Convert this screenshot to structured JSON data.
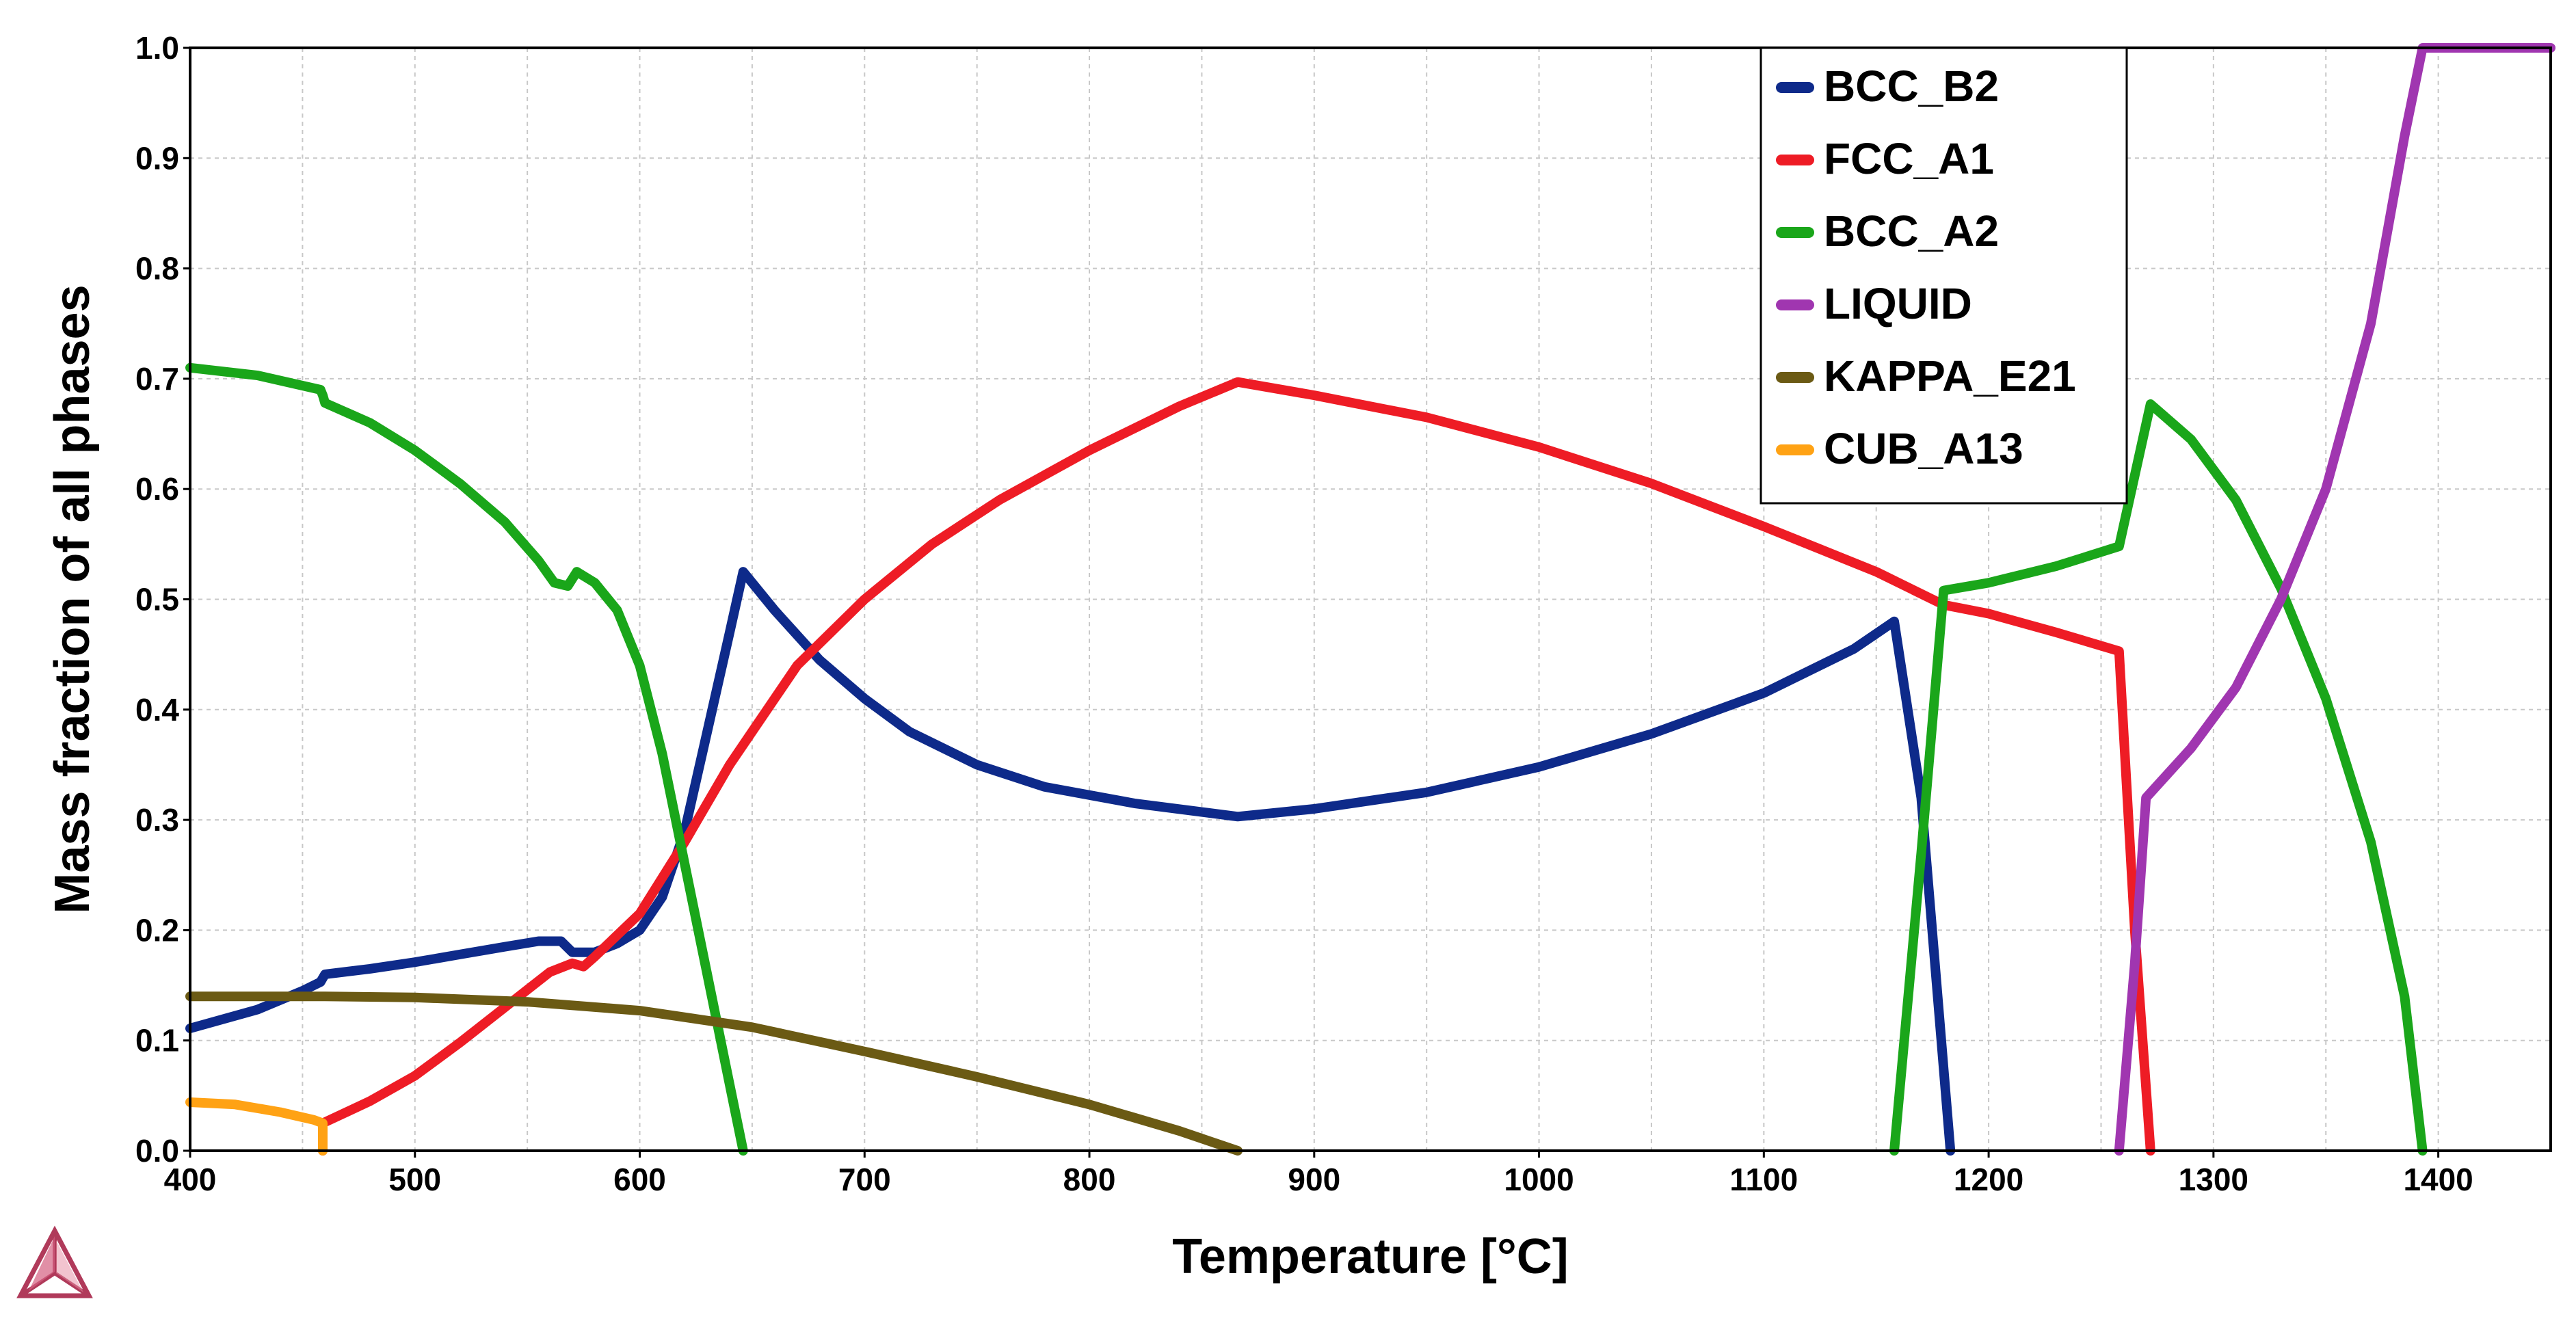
{
  "chart_data": {
    "type": "line",
    "title": "",
    "xlabel": "Temperature [°C]",
    "ylabel": "Mass fraction of all phases",
    "xlim": [
      400,
      1450
    ],
    "ylim": [
      0,
      1.0
    ],
    "grid": true,
    "legend_position": "top-right",
    "x_ticks": [
      400,
      500,
      600,
      700,
      800,
      900,
      1000,
      1100,
      1200,
      1300,
      1400
    ],
    "y_ticks": [
      0.0,
      0.1,
      0.2,
      0.3,
      0.4,
      0.5,
      0.6,
      0.7,
      0.8,
      0.9,
      1.0
    ],
    "x_tick_labels": [
      "400",
      "500",
      "600",
      "700",
      "800",
      "900",
      "1000",
      "1100",
      "1200",
      "1300",
      "1400"
    ],
    "y_tick_labels": [
      "0.0",
      "0.1",
      "0.2",
      "0.3",
      "0.4",
      "0.5",
      "0.6",
      "0.7",
      "0.8",
      "0.9",
      "1.0"
    ],
    "series": [
      {
        "name": "BCC_B2",
        "color": "#0e2a8a",
        "points": [
          [
            400,
            0.111
          ],
          [
            430,
            0.128
          ],
          [
            450,
            0.145
          ],
          [
            458,
            0.153
          ],
          [
            460,
            0.16
          ],
          [
            480,
            0.165
          ],
          [
            500,
            0.171
          ],
          [
            520,
            0.178
          ],
          [
            540,
            0.185
          ],
          [
            555,
            0.19
          ],
          [
            565,
            0.19
          ],
          [
            570,
            0.18
          ],
          [
            580,
            0.18
          ],
          [
            590,
            0.188
          ],
          [
            600,
            0.2
          ],
          [
            610,
            0.23
          ],
          [
            620,
            0.29
          ],
          [
            630,
            0.38
          ],
          [
            640,
            0.47
          ],
          [
            646,
            0.525
          ],
          [
            660,
            0.49
          ],
          [
            680,
            0.445
          ],
          [
            700,
            0.41
          ],
          [
            720,
            0.38
          ],
          [
            750,
            0.35
          ],
          [
            780,
            0.33
          ],
          [
            820,
            0.315
          ],
          [
            866,
            0.303
          ],
          [
            900,
            0.31
          ],
          [
            950,
            0.325
          ],
          [
            1000,
            0.348
          ],
          [
            1050,
            0.378
          ],
          [
            1100,
            0.415
          ],
          [
            1140,
            0.455
          ],
          [
            1158,
            0.48
          ],
          [
            1170,
            0.32
          ],
          [
            1183,
            0.0
          ]
        ]
      },
      {
        "name": "FCC_A1",
        "color": "#ee1c25",
        "points": [
          [
            459,
            0.0
          ],
          [
            459,
            0.025
          ],
          [
            480,
            0.045
          ],
          [
            500,
            0.068
          ],
          [
            520,
            0.098
          ],
          [
            540,
            0.13
          ],
          [
            560,
            0.162
          ],
          [
            570,
            0.17
          ],
          [
            575,
            0.167
          ],
          [
            580,
            0.176
          ],
          [
            600,
            0.215
          ],
          [
            620,
            0.28
          ],
          [
            640,
            0.35
          ],
          [
            650,
            0.38
          ],
          [
            670,
            0.44
          ],
          [
            700,
            0.5
          ],
          [
            730,
            0.55
          ],
          [
            760,
            0.59
          ],
          [
            800,
            0.635
          ],
          [
            840,
            0.675
          ],
          [
            866,
            0.697
          ],
          [
            900,
            0.685
          ],
          [
            950,
            0.665
          ],
          [
            1000,
            0.638
          ],
          [
            1050,
            0.605
          ],
          [
            1100,
            0.566
          ],
          [
            1150,
            0.525
          ],
          [
            1180,
            0.495
          ],
          [
            1200,
            0.487
          ],
          [
            1230,
            0.47
          ],
          [
            1258,
            0.453
          ],
          [
            1265,
            0.2
          ],
          [
            1272,
            0.0
          ]
        ]
      },
      {
        "name": "BCC_A2",
        "color": "#1aa61a",
        "points": [
          [
            400,
            0.71
          ],
          [
            430,
            0.703
          ],
          [
            458,
            0.69
          ],
          [
            459,
            0.685
          ],
          [
            460,
            0.678
          ],
          [
            480,
            0.66
          ],
          [
            500,
            0.635
          ],
          [
            520,
            0.605
          ],
          [
            540,
            0.57
          ],
          [
            555,
            0.535
          ],
          [
            562,
            0.515
          ],
          [
            568,
            0.512
          ],
          [
            572,
            0.525
          ],
          [
            580,
            0.515
          ],
          [
            590,
            0.49
          ],
          [
            600,
            0.44
          ],
          [
            610,
            0.36
          ],
          [
            620,
            0.26
          ],
          [
            630,
            0.16
          ],
          [
            640,
            0.06
          ],
          [
            646,
            0.0
          ]
        ],
        "segments_extra": [
          [
            [
              1158,
              0.0
            ],
            [
              1170,
              0.27
            ],
            [
              1180,
              0.508
            ],
            [
              1200,
              0.515
            ],
            [
              1230,
              0.53
            ],
            [
              1258,
              0.548
            ],
            [
              1272,
              0.677
            ],
            [
              1290,
              0.645
            ],
            [
              1310,
              0.59
            ],
            [
              1330,
              0.51
            ],
            [
              1350,
              0.41
            ],
            [
              1370,
              0.28
            ],
            [
              1385,
              0.14
            ],
            [
              1393,
              0.0
            ]
          ]
        ]
      },
      {
        "name": "LIQUID",
        "color": "#a036b0",
        "points": [
          [
            1258,
            0.0
          ],
          [
            1265,
            0.17
          ],
          [
            1270,
            0.32
          ],
          [
            1290,
            0.365
          ],
          [
            1310,
            0.42
          ],
          [
            1330,
            0.5
          ],
          [
            1350,
            0.6
          ],
          [
            1370,
            0.75
          ],
          [
            1385,
            0.92
          ],
          [
            1393,
            1.0
          ],
          [
            1450,
            1.0
          ]
        ]
      },
      {
        "name": "KAPPA_E21",
        "color": "#6b5a14",
        "points": [
          [
            400,
            0.14
          ],
          [
            460,
            0.14
          ],
          [
            500,
            0.139
          ],
          [
            550,
            0.135
          ],
          [
            600,
            0.127
          ],
          [
            650,
            0.112
          ],
          [
            700,
            0.09
          ],
          [
            750,
            0.067
          ],
          [
            800,
            0.042
          ],
          [
            840,
            0.018
          ],
          [
            866,
            0.0
          ]
        ]
      },
      {
        "name": "CUB_A13",
        "color": "#ffa214",
        "points": [
          [
            400,
            0.044
          ],
          [
            420,
            0.042
          ],
          [
            440,
            0.035
          ],
          [
            455,
            0.028
          ],
          [
            459,
            0.025
          ],
          [
            459,
            0.0
          ]
        ]
      }
    ]
  },
  "logo": {
    "name": "thermo-calc-logo"
  }
}
